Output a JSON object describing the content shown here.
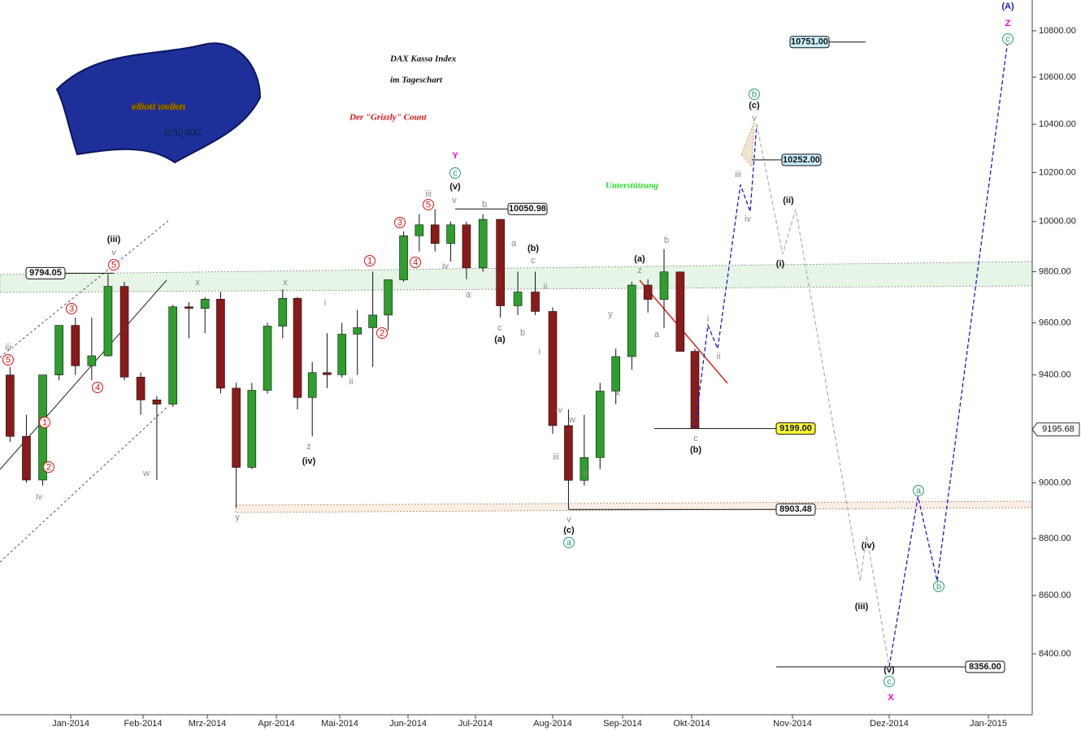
{
  "chart_data": {
    "type": "candlestick",
    "title": "DAX Kassa Index",
    "subtitle": "im Tageschart",
    "headline": "Der \"Grizzly\" Count",
    "support_label": "Unterstützung",
    "logo": {
      "line1": "elliott wellen",
      "line2": "analysen"
    },
    "log_scale": true,
    "ylim": [
      8196,
      10935
    ],
    "yticks": [
      {
        "value": 8400,
        "label": "8400.00"
      },
      {
        "value": 8600,
        "label": "8600.00"
      },
      {
        "value": 8800,
        "label": "8800.00"
      },
      {
        "value": 9000,
        "label": "9000.00"
      },
      {
        "value": 9200,
        "label": "9200.00"
      },
      {
        "value": 9400,
        "label": "9400.00"
      },
      {
        "value": 9600,
        "label": "9600.00"
      },
      {
        "value": 9800,
        "label": "9800.00"
      },
      {
        "value": 10000,
        "label": "10000.00"
      },
      {
        "value": 10200,
        "label": "10200.00"
      },
      {
        "value": 10400,
        "label": "10400.00"
      },
      {
        "value": 10600,
        "label": "10600.00"
      },
      {
        "value": 10800,
        "label": "10800.00"
      }
    ],
    "xticks": [
      {
        "value": "2014-01-01",
        "label": "Jan-2014"
      },
      {
        "value": "2014-02-01",
        "label": "Feb-2014"
      },
      {
        "value": "2014-03-01",
        "label": "Mrz-2014"
      },
      {
        "value": "2014-04-01",
        "label": "Apr-2014"
      },
      {
        "value": "2014-05-01",
        "label": "Mai-2014"
      },
      {
        "value": "2014-06-01",
        "label": "Jun-2014"
      },
      {
        "value": "2014-07-01",
        "label": "Jul-2014"
      },
      {
        "value": "2014-08-01",
        "label": "Aug-2014"
      },
      {
        "value": "2014-09-01",
        "label": "Sep-2014"
      },
      {
        "value": "2014-10-01",
        "label": "Okt-2014"
      },
      {
        "value": "2014-11-01",
        "label": "Nov-2014"
      },
      {
        "value": "2014-12-01",
        "label": "Dez-2014"
      },
      {
        "value": "2015-01-01",
        "label": "Jan-2015"
      }
    ],
    "up_color": "#2e9e2e",
    "down_color": "#8b1a1a",
    "candles": {
      "x": [
        "2013-12-06",
        "2013-12-13",
        "2013-12-20",
        "2013-12-27",
        "2014-01-03",
        "2014-01-10",
        "2014-01-17",
        "2014-01-24",
        "2014-01-31",
        "2014-02-07",
        "2014-02-14",
        "2014-02-21",
        "2014-02-28",
        "2014-03-07",
        "2014-03-14",
        "2014-03-21",
        "2014-03-28",
        "2014-04-04",
        "2014-04-11",
        "2014-04-18",
        "2014-04-25",
        "2014-05-02",
        "2014-05-09",
        "2014-05-16",
        "2014-05-23",
        "2014-05-30",
        "2014-06-06",
        "2014-06-13",
        "2014-06-20",
        "2014-06-27",
        "2014-07-04",
        "2014-07-11",
        "2014-07-18",
        "2014-07-25",
        "2014-08-01",
        "2014-08-08",
        "2014-08-15",
        "2014-08-22",
        "2014-08-29",
        "2014-09-05",
        "2014-09-12",
        "2014-09-19",
        "2014-09-26",
        "2014-10-02"
      ],
      "open": [
        9400,
        9170,
        9010,
        9400,
        9590,
        9435,
        9473,
        9742,
        9392,
        9306,
        9290,
        9662,
        9656,
        9692,
        9350,
        9056,
        9342,
        9587,
        9695,
        9315,
        9409,
        9401,
        9556,
        9581,
        9630,
        9768,
        9943,
        9987,
        9912,
        9987,
        9815,
        10009,
        9666,
        9720,
        9644,
        9210,
        9009,
        9092,
        9339,
        9470,
        9747,
        9691,
        9799,
        9490
      ],
      "high": [
        9430,
        9250,
        9400,
        9590,
        9620,
        9620,
        9790,
        9760,
        9410,
        9320,
        9670,
        9680,
        9700,
        9720,
        9370,
        9370,
        9600,
        9730,
        9700,
        9450,
        9560,
        9600,
        9650,
        9800,
        9770,
        9960,
        10030,
        10050,
        10000,
        10000,
        10030,
        10010,
        9800,
        9800,
        9660,
        9270,
        9250,
        9370,
        9500,
        9760,
        9770,
        9890,
        9800,
        9500
      ],
      "low": [
        9150,
        9000,
        8990,
        9380,
        9400,
        9380,
        9470,
        9380,
        9250,
        9010,
        9280,
        9540,
        9560,
        9330,
        8910,
        9050,
        9330,
        9540,
        9270,
        9170,
        9350,
        9390,
        9400,
        9430,
        9570,
        9760,
        9880,
        9880,
        9840,
        9770,
        9800,
        9620,
        9630,
        9630,
        9180,
        8903,
        8990,
        9050,
        9290,
        9420,
        9640,
        9580,
        9490,
        9199
      ],
      "close": [
        9170,
        9010,
        9400,
        9590,
        9435,
        9473,
        9742,
        9392,
        9306,
        9290,
        9662,
        9656,
        9692,
        9350,
        9056,
        9342,
        9587,
        9695,
        9315,
        9409,
        9401,
        9556,
        9581,
        9630,
        9768,
        9943,
        9987,
        9912,
        9987,
        9815,
        10009,
        9666,
        9720,
        9644,
        9210,
        9009,
        9092,
        9339,
        9470,
        9747,
        9691,
        9799,
        9490,
        9199
      ]
    },
    "forecasts": [
      {
        "color": "#1a1acc",
        "x": [
          "2014-10-02",
          "2014-10-06",
          "2014-10-09",
          "2014-10-16",
          "2014-10-19",
          "2014-10-21"
        ],
        "values": [
          9199,
          9590,
          9500,
          10150,
          10040,
          10400
        ]
      },
      {
        "color": "#b4b4b4",
        "x": [
          "2014-10-21",
          "2014-10-29",
          "2014-11-02",
          "2014-11-22",
          "2014-11-24",
          "2014-12-01"
        ],
        "values": [
          10400,
          9870,
          10050,
          8650,
          8810,
          8356
        ]
      },
      {
        "color": "#1a1acc",
        "x": [
          "2014-12-01",
          "2014-12-10",
          "2014-12-16",
          "2015-01-07"
        ],
        "values": [
          8356,
          8950,
          8650,
          10751
        ]
      }
    ],
    "levels": [
      {
        "value": 10751,
        "label": "10751.00"
      },
      {
        "value": 10252,
        "label": "10252.00"
      },
      {
        "value": 10050.98,
        "label": "10050.98"
      },
      {
        "value": 9794.05,
        "label": "9794.05"
      },
      {
        "value": 9199,
        "label": "9199.00"
      },
      {
        "value": 8903.48,
        "label": "8903.48"
      },
      {
        "value": 8356,
        "label": "8356.00"
      }
    ],
    "last_price": {
      "value": 9195.68,
      "label": "9195.68"
    },
    "wave_labels": [
      "iii",
      "5",
      "iv",
      "1",
      "2",
      "3",
      "4",
      "(iii)",
      "v",
      "5",
      "w",
      "x",
      "y",
      "x",
      "i",
      "ii",
      "z",
      "(iv)",
      "1",
      "2",
      "3",
      "4",
      "5",
      "iii",
      "iv",
      "v",
      "(v)",
      "c",
      "Y",
      "b",
      "a",
      "c",
      "(a)",
      "a",
      "(b)",
      "c",
      "ii",
      "b",
      "i",
      "iv",
      "w",
      "iii",
      "x",
      "v",
      "(c)",
      "a",
      "y",
      "x",
      "(a)",
      "z",
      "b",
      "a",
      "c",
      "(b)",
      "i",
      "ii",
      "iii",
      "iv",
      "b",
      "(c)",
      "v",
      "(ii)",
      "(i)",
      "(iii)",
      "(iv)",
      "(v)",
      "c",
      "X",
      "a",
      "b",
      "(A)",
      "Z",
      "c"
    ]
  }
}
